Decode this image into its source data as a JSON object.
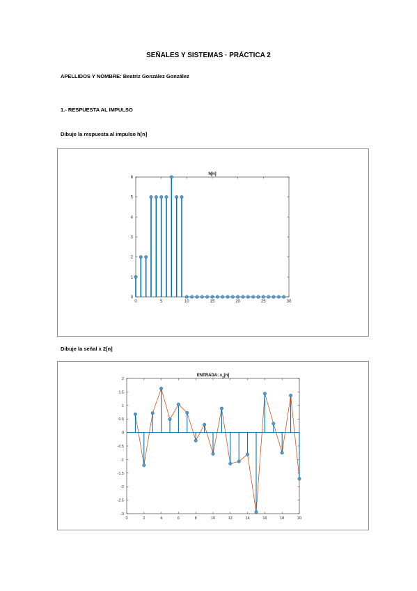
{
  "doc": {
    "title": "SEÑALES Y SISTEMAS · PRÁCTICA 2",
    "author_label": "APELLIDOS Y NOMBRE:",
    "author_name": "Beatriz González González",
    "section1": "1.- RESPUESTA AL IMPULSO",
    "q1": "Dibuje la respuesta al impulso h[n]",
    "q2": "Dibuje la señal x 2[n]"
  },
  "colors": {
    "stem": "#0072bd",
    "line": "#d95319",
    "marker_fill": "#4d9fd6"
  },
  "chart_data": [
    {
      "type": "stem",
      "title": "h[n]",
      "xlim": [
        0,
        30
      ],
      "ylim": [
        0,
        6
      ],
      "xticks": [
        "0",
        "5",
        "10",
        "15",
        "20",
        "25",
        "30"
      ],
      "yticks": [
        "0",
        "1",
        "2",
        "3",
        "4",
        "5",
        "6"
      ],
      "x": [
        0,
        1,
        2,
        3,
        4,
        5,
        6,
        7,
        8,
        9,
        10,
        11,
        12,
        13,
        14,
        15,
        16,
        17,
        18,
        19,
        20,
        21,
        22,
        23,
        24,
        25,
        26,
        27,
        28,
        29
      ],
      "values": [
        1,
        2,
        2,
        5,
        5,
        5,
        5,
        6,
        5,
        5,
        0,
        0,
        0,
        0,
        0,
        0,
        0,
        0,
        0,
        0,
        0,
        0,
        0,
        0,
        0,
        0,
        0,
        0,
        0,
        0
      ]
    },
    {
      "type": "stem+line",
      "title": "ENTRADA: x",
      "title_sub": "2",
      "title_suffix": "[n]",
      "xlim": [
        0,
        20
      ],
      "ylim": [
        -3,
        2
      ],
      "xticks": [
        "0",
        "2",
        "4",
        "6",
        "8",
        "10",
        "12",
        "14",
        "16",
        "18",
        "20"
      ],
      "yticks": [
        "-3",
        "-2.5",
        "-2",
        "-1.5",
        "-1",
        "-0.5",
        "0",
        "0.5",
        "1",
        "1.5",
        "2"
      ],
      "x": [
        1,
        2,
        3,
        4,
        5,
        6,
        7,
        8,
        9,
        10,
        11,
        12,
        13,
        14,
        15,
        16,
        17,
        18,
        19,
        20
      ],
      "values": [
        0.68,
        -1.21,
        0.72,
        1.63,
        0.49,
        1.04,
        0.73,
        -0.3,
        0.29,
        -0.79,
        0.89,
        -1.15,
        -1.07,
        -0.81,
        -2.94,
        1.44,
        0.33,
        -0.75,
        1.37,
        -1.71
      ]
    }
  ]
}
